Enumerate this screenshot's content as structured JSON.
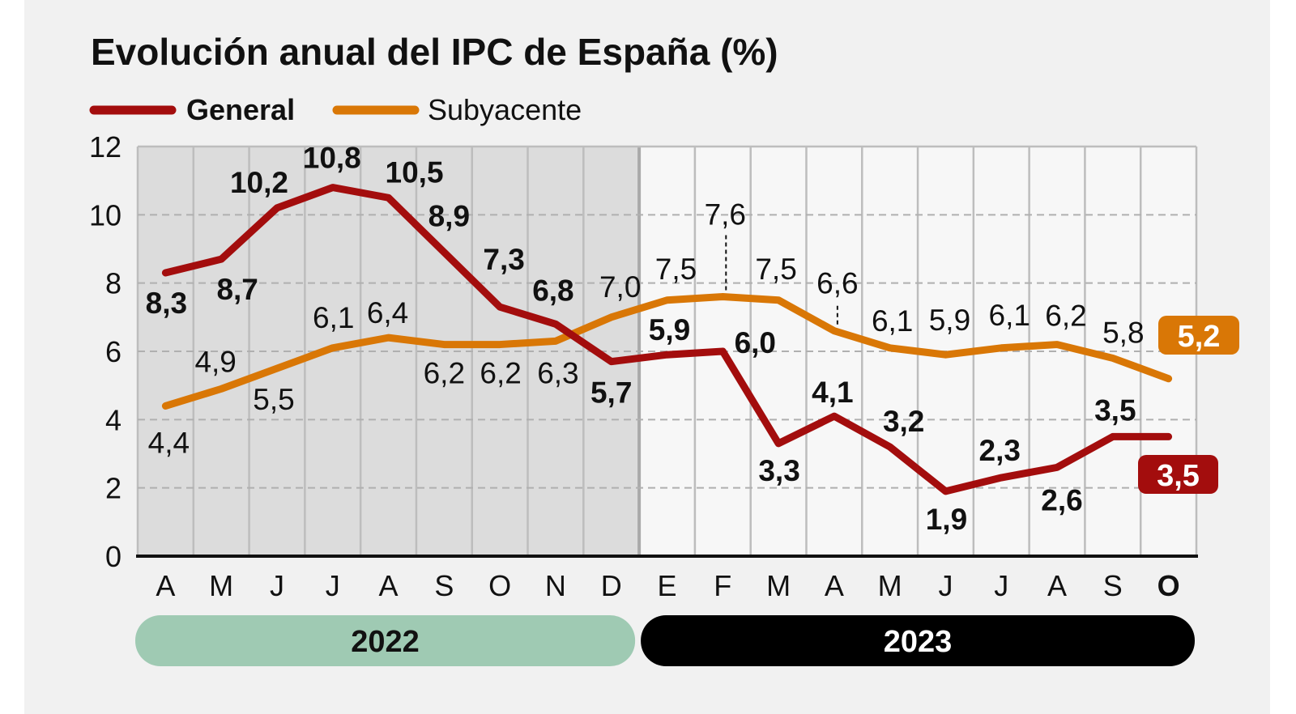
{
  "chart_data": {
    "type": "line",
    "title": "Evolución anual del IPC de España (%)",
    "categories": [
      "A",
      "M",
      "J",
      "J",
      "A",
      "S",
      "O",
      "N",
      "D",
      "E",
      "F",
      "M",
      "A",
      "M",
      "J",
      "J",
      "A",
      "S",
      "O"
    ],
    "year_groups": [
      {
        "label": "2022",
        "months": 9,
        "color": "#9fcab3"
      },
      {
        "label": "2023",
        "months": 10,
        "color": "#000000"
      }
    ],
    "series": [
      {
        "name": "General",
        "color": "#a30d0d",
        "values": [
          8.3,
          8.7,
          10.2,
          10.8,
          10.5,
          8.9,
          7.3,
          6.8,
          5.7,
          5.9,
          6.0,
          3.3,
          4.1,
          3.2,
          1.9,
          2.3,
          2.6,
          3.5,
          3.5
        ]
      },
      {
        "name": "Subyacente",
        "color": "#d97706",
        "values": [
          4.4,
          4.9,
          5.5,
          6.1,
          6.4,
          6.2,
          6.2,
          6.3,
          7.0,
          7.5,
          7.6,
          7.5,
          6.6,
          6.1,
          5.9,
          6.1,
          6.2,
          5.8,
          5.2
        ]
      }
    ],
    "ylim": [
      0,
      12
    ],
    "yticks": [
      0,
      2,
      4,
      6,
      8,
      10,
      12
    ],
    "grid": true,
    "legend": "top-left",
    "decimal_separator": ","
  }
}
